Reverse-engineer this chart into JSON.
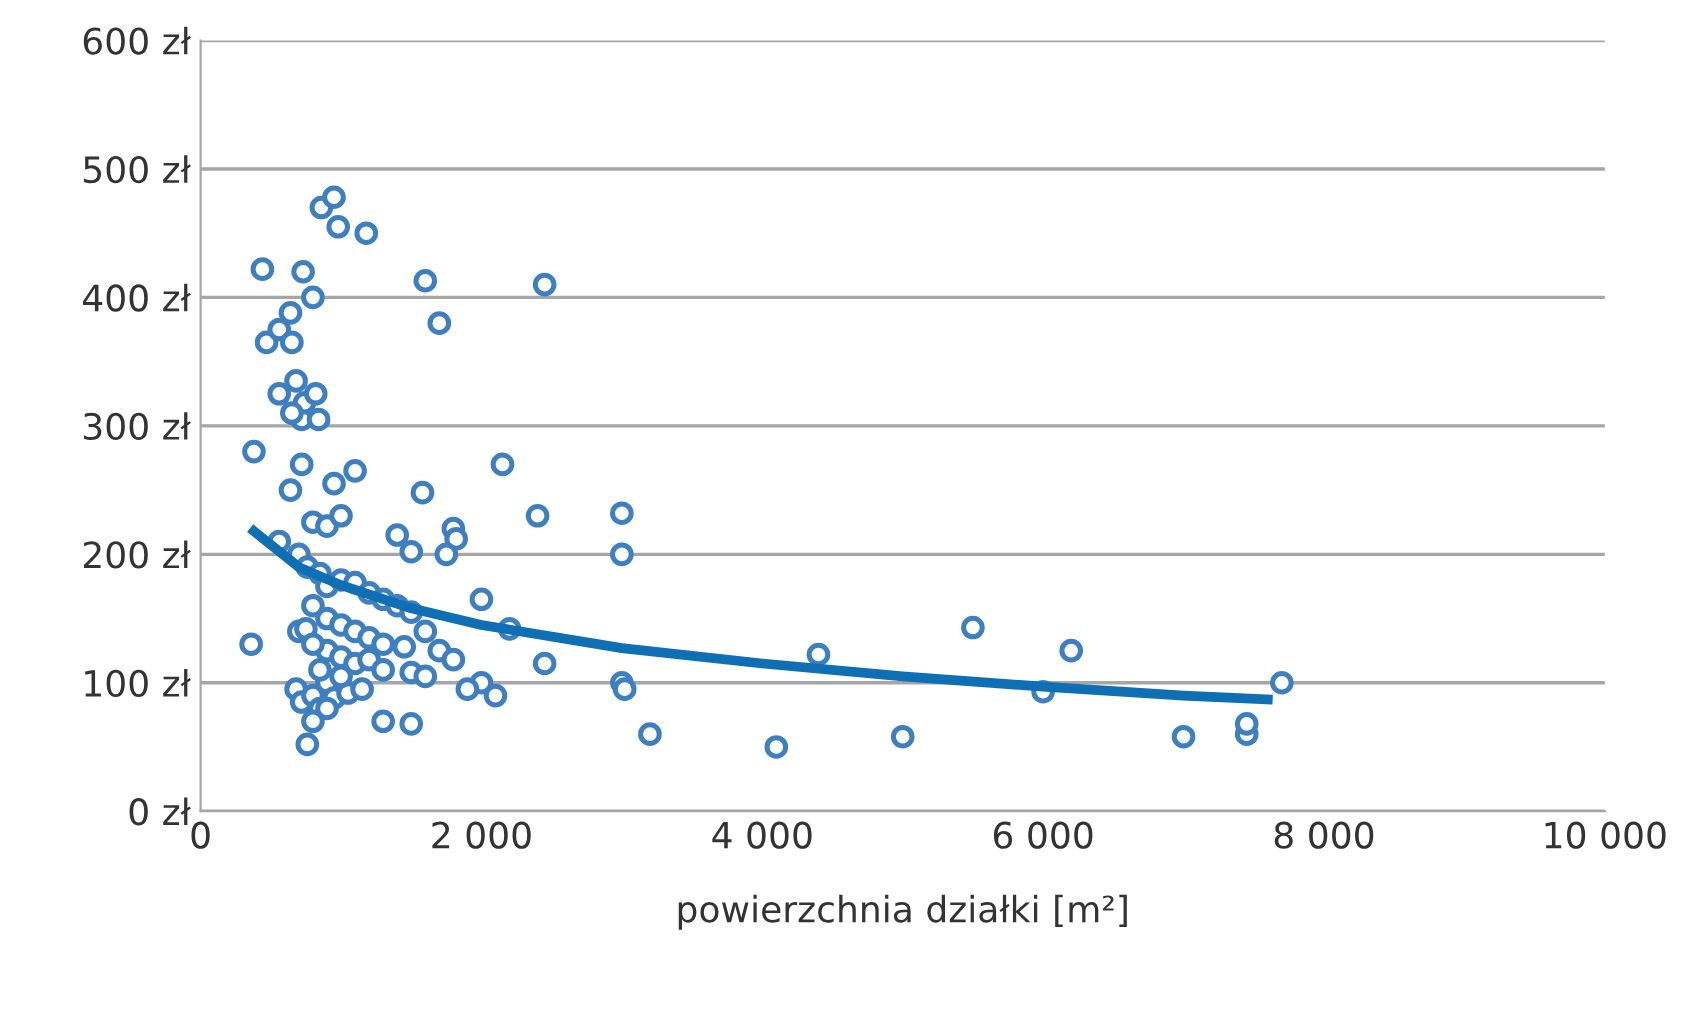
{
  "chart_data": {
    "type": "scatter",
    "xlabel": "powierzchnia działki [m²]",
    "xlim": [
      0,
      10000
    ],
    "ylim": [
      0,
      600
    ],
    "xticks": [
      0,
      {
        "value": 2000,
        "label": "2 000"
      },
      {
        "value": 4000,
        "label": "4 000"
      },
      {
        "value": 6000,
        "label": "6 000"
      },
      {
        "value": 8000,
        "label": "8 000"
      },
      {
        "value": 10000,
        "label": "10 000"
      }
    ],
    "yticks": [
      {
        "value": 0,
        "label": "0 zł"
      },
      {
        "value": 100,
        "label": "100 zł"
      },
      {
        "value": 200,
        "label": "200 zł"
      },
      {
        "value": 300,
        "label": "300 zł"
      },
      {
        "value": 400,
        "label": "400 zł"
      },
      {
        "value": 500,
        "label": "500 zł"
      },
      {
        "value": 600,
        "label": "600 zł"
      }
    ],
    "grid": "y",
    "legend": false,
    "series": [
      {
        "color": "#3d7fc1",
        "marker": "circle",
        "x": [
          440,
          730,
          800,
          860,
          950,
          980,
          1180,
          1600,
          1700,
          2450,
          470,
          560,
          640,
          650,
          560,
          680,
          720,
          740,
          820,
          840,
          650,
          380,
          720,
          1100,
          950,
          1580,
          640,
          2150,
          3000,
          2400,
          3000,
          560,
          800,
          900,
          1000,
          1800,
          1820,
          1750,
          1500,
          1400,
          700,
          760,
          850,
          900,
          1000,
          1100,
          1200,
          1300,
          1400,
          1500,
          2000,
          2200,
          800,
          900,
          1000,
          1100,
          1200,
          1300,
          1450,
          1600,
          1700,
          1800,
          900,
          1000,
          700,
          750,
          800,
          1100,
          1200,
          1300,
          1500,
          1600,
          2000,
          2100,
          1900,
          360,
          680,
          720,
          800,
          850,
          900,
          950,
          1050,
          1150,
          800,
          900,
          760,
          1300,
          1500,
          850,
          1000,
          2450,
          3000,
          3020,
          3200,
          4100,
          4400,
          5000,
          5500,
          6000,
          6200,
          7000,
          7450,
          7450,
          7700
        ],
        "values": [
          422,
          420,
          400,
          470,
          478,
          455,
          450,
          413,
          380,
          410,
          365,
          375,
          388,
          365,
          325,
          335,
          305,
          318,
          325,
          305,
          310,
          280,
          270,
          265,
          255,
          248,
          250,
          270,
          232,
          230,
          200,
          210,
          225,
          222,
          230,
          220,
          212,
          200,
          202,
          215,
          200,
          190,
          185,
          175,
          180,
          178,
          170,
          165,
          160,
          155,
          165,
          142,
          160,
          150,
          145,
          140,
          135,
          130,
          128,
          140,
          125,
          118,
          125,
          120,
          140,
          142,
          130,
          115,
          118,
          110,
          108,
          105,
          100,
          90,
          95,
          130,
          95,
          85,
          90,
          80,
          100,
          88,
          92,
          95,
          70,
          80,
          52,
          70,
          68,
          110,
          105,
          115,
          100,
          95,
          60,
          50,
          122,
          58,
          143,
          93,
          125,
          58,
          60,
          68,
          100
        ]
      },
      {
        "type": "line",
        "color": "#0e6fb5",
        "marker": "none",
        "line_style": "solid",
        "x": [
          380,
          700,
          1000,
          1500,
          2000,
          3000,
          4000,
          5000,
          6000,
          7000,
          7600
        ],
        "values": [
          218,
          190,
          176,
          158,
          145,
          127,
          115,
          105,
          97,
          90,
          87
        ]
      }
    ]
  }
}
